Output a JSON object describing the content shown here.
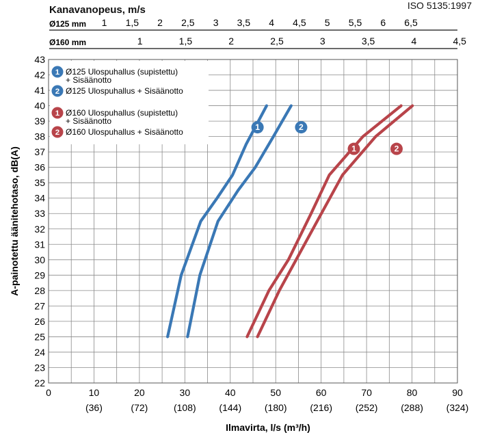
{
  "chart_data": {
    "type": "line",
    "standard": "ISO 5135:1997",
    "top_axis_title": "Kanavanopeus, m/s",
    "top_axes": [
      {
        "label": "Ø125 mm",
        "ticks": [
          "1",
          "1,5",
          "2",
          "2,5",
          "3",
          "3,5",
          "4",
          "4,5",
          "5",
          "5,5",
          "6",
          "6,5"
        ],
        "tick_flow_ls": [
          12.27,
          18.41,
          24.54,
          30.68,
          36.82,
          42.95,
          49.09,
          55.22,
          61.36,
          67.5,
          73.63,
          79.77
        ]
      },
      {
        "label": "Ø160 mm",
        "ticks": [
          "1",
          "1,5",
          "2",
          "2,5",
          "3",
          "3,5",
          "4",
          "4,5"
        ],
        "tick_flow_ls": [
          20.11,
          30.16,
          40.21,
          50.27,
          60.32,
          70.37,
          80.42,
          90.48
        ]
      }
    ],
    "xlabel": "Ilmavirta, l/s (m³/h)",
    "ylabel": "A-painotettu äänitehotaso, dB(A)",
    "xlim": [
      0,
      90
    ],
    "ylim": [
      22,
      43
    ],
    "x_ticks": [
      0,
      10,
      20,
      30,
      40,
      50,
      60,
      70,
      80,
      90
    ],
    "x_ticks_m3h": [
      "",
      "(36)",
      "(72)",
      "(108)",
      "(144)",
      "(180)",
      "(216)",
      "(252)",
      "(288)",
      "(324)"
    ],
    "y_ticks": [
      22,
      23,
      24,
      25,
      26,
      27,
      28,
      29,
      30,
      31,
      32,
      33,
      34,
      35,
      36,
      37,
      38,
      39,
      40,
      41,
      42,
      43
    ],
    "grid": true,
    "legend_position": "top-left",
    "legend_groups": [
      {
        "color": "#3a78b5",
        "items": [
          {
            "badge": "1",
            "text": [
              "Ø125 Ulospuhallus (supistettu)",
              "+ Sisäänotto"
            ]
          },
          {
            "badge": "2",
            "text": [
              "Ø125 Ulospuhallus + Sisäänotto"
            ]
          }
        ]
      },
      {
        "color": "#b8444a",
        "items": [
          {
            "badge": "1",
            "text": [
              "Ø160 Ulospuhallus (supistettu)",
              "+ Sisäänotto"
            ]
          },
          {
            "badge": "2",
            "text": [
              "Ø160 Ulospuhallus + Sisäänotto"
            ]
          }
        ]
      }
    ],
    "series": [
      {
        "badge": "1",
        "color": "#3a78b5",
        "badge_at": [
          46,
          38.6
        ],
        "points": [
          [
            26.2,
            25
          ],
          [
            29.2,
            29
          ],
          [
            33.5,
            32.5
          ],
          [
            37.1,
            34
          ],
          [
            40.5,
            35.5
          ],
          [
            43.5,
            37.5
          ],
          [
            48,
            40
          ]
        ]
      },
      {
        "badge": "2",
        "color": "#3a78b5",
        "badge_at": [
          55.6,
          38.6
        ],
        "points": [
          [
            30.6,
            25
          ],
          [
            33.3,
            29
          ],
          [
            37.3,
            32.5
          ],
          [
            41.7,
            34.5
          ],
          [
            45.5,
            36
          ],
          [
            49.5,
            38
          ],
          [
            53.4,
            40
          ]
        ]
      },
      {
        "badge": "1",
        "color": "#b8444a",
        "badge_at": [
          67.2,
          37.2
        ],
        "points": [
          [
            43.7,
            25
          ],
          [
            48.5,
            28
          ],
          [
            52.8,
            30
          ],
          [
            57.8,
            33
          ],
          [
            61.8,
            35.5
          ],
          [
            69.2,
            38
          ],
          [
            77.6,
            40
          ]
        ]
      },
      {
        "badge": "2",
        "color": "#b8444a",
        "badge_at": [
          76.6,
          37.2
        ],
        "points": [
          [
            46,
            25
          ],
          [
            50.8,
            28
          ],
          [
            54.5,
            30
          ],
          [
            59.5,
            32.7
          ],
          [
            64.7,
            35.5
          ],
          [
            72,
            38
          ],
          [
            80.1,
            40
          ]
        ]
      }
    ]
  }
}
